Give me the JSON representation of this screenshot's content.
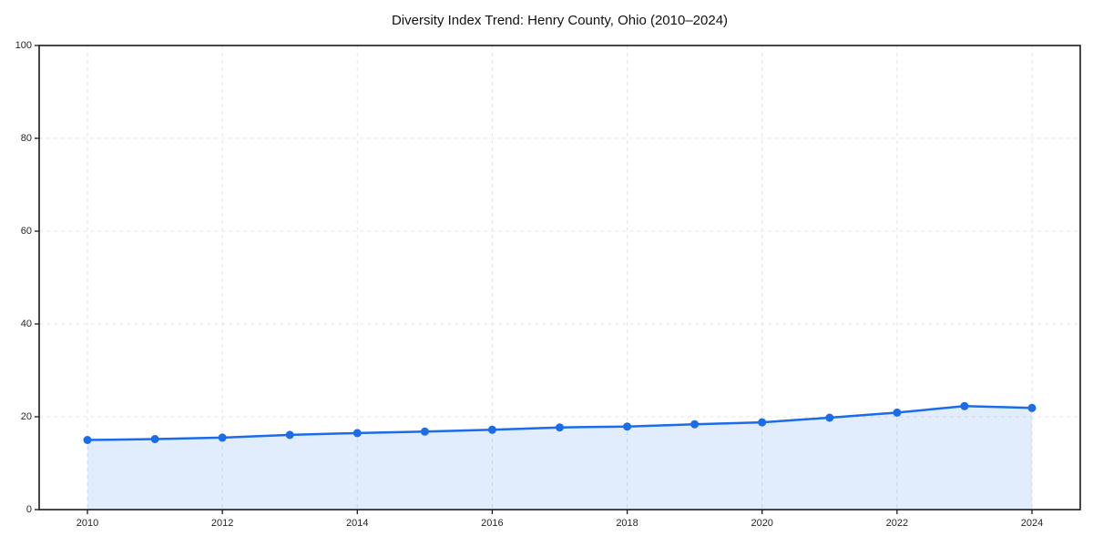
{
  "chart": {
    "title": "Diversity Index Trend: Henry County, Ohio (2010–2024)"
  },
  "chart_data": {
    "type": "line",
    "title": "Diversity Index Trend: Henry County, Ohio (2010–2024)",
    "x": [
      2010,
      2011,
      2012,
      2013,
      2014,
      2015,
      2016,
      2017,
      2018,
      2019,
      2020,
      2021,
      2022,
      2023,
      2024
    ],
    "values": [
      15.0,
      15.2,
      15.5,
      16.1,
      16.5,
      16.8,
      17.2,
      17.7,
      17.9,
      18.4,
      18.8,
      19.8,
      20.9,
      22.3,
      21.9
    ],
    "xticks": [
      2010,
      2012,
      2014,
      2016,
      2018,
      2020,
      2022,
      2024
    ],
    "yticks": [
      0,
      20,
      40,
      60,
      80,
      100
    ],
    "ylim": [
      0,
      100
    ],
    "xlabel": "",
    "ylabel": "",
    "grid": true,
    "grid_style": "dashed",
    "legend_position": "none",
    "line_color": "#1a6ce8",
    "marker": "circle",
    "marker_color": "#1a6ce8",
    "area_fill_color": "#1a6ce8",
    "area_fill_opacity": 0.13,
    "grid_color": "#e4e4e4",
    "axis_color": "#1a1a1a",
    "tick_label_color": "#262626",
    "title_color": "#111111",
    "background_color": "#ffffff"
  }
}
